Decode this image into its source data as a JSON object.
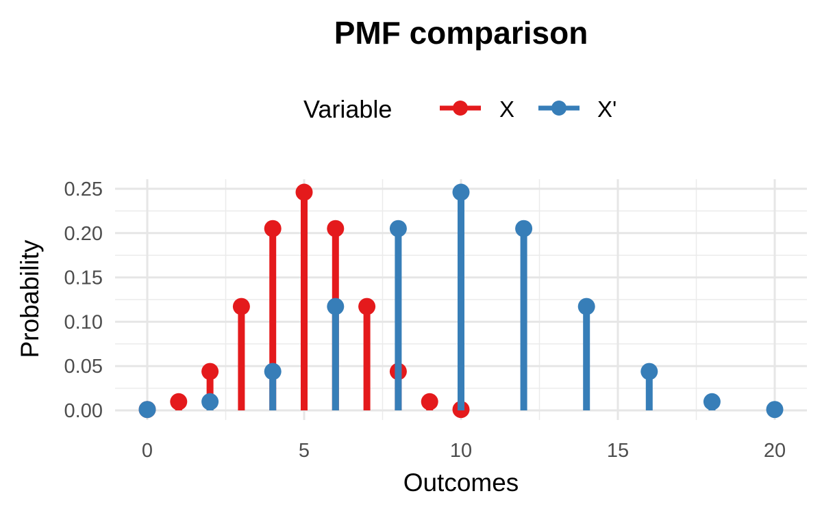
{
  "chart_data": {
    "type": "lollipop",
    "title": "PMF comparison",
    "xlabel": "Outcomes",
    "ylabel": "Probability",
    "xlim": [
      0,
      20
    ],
    "ylim": [
      0,
      0.25
    ],
    "x_ticks": [
      "0",
      "5",
      "10",
      "15",
      "20"
    ],
    "y_ticks": [
      "0.00",
      "0.05",
      "0.10",
      "0.15",
      "0.20",
      "0.25"
    ],
    "grid": true,
    "legend": {
      "title": "Variable",
      "position": "top"
    },
    "series": [
      {
        "name": "X",
        "color": "#e41a1c",
        "x": [
          0,
          1,
          2,
          3,
          4,
          5,
          6,
          7,
          8,
          9,
          10
        ],
        "y": [
          0.001,
          0.0098,
          0.0439,
          0.1172,
          0.2051,
          0.2461,
          0.2051,
          0.1172,
          0.0439,
          0.0098,
          0.001
        ]
      },
      {
        "name": "X'",
        "color": "#377eb8",
        "x": [
          0,
          2,
          4,
          6,
          8,
          10,
          12,
          14,
          16,
          18,
          20
        ],
        "y": [
          0.001,
          0.0098,
          0.0439,
          0.1172,
          0.2051,
          0.2461,
          0.2051,
          0.1172,
          0.0439,
          0.0098,
          0.001
        ]
      }
    ]
  }
}
